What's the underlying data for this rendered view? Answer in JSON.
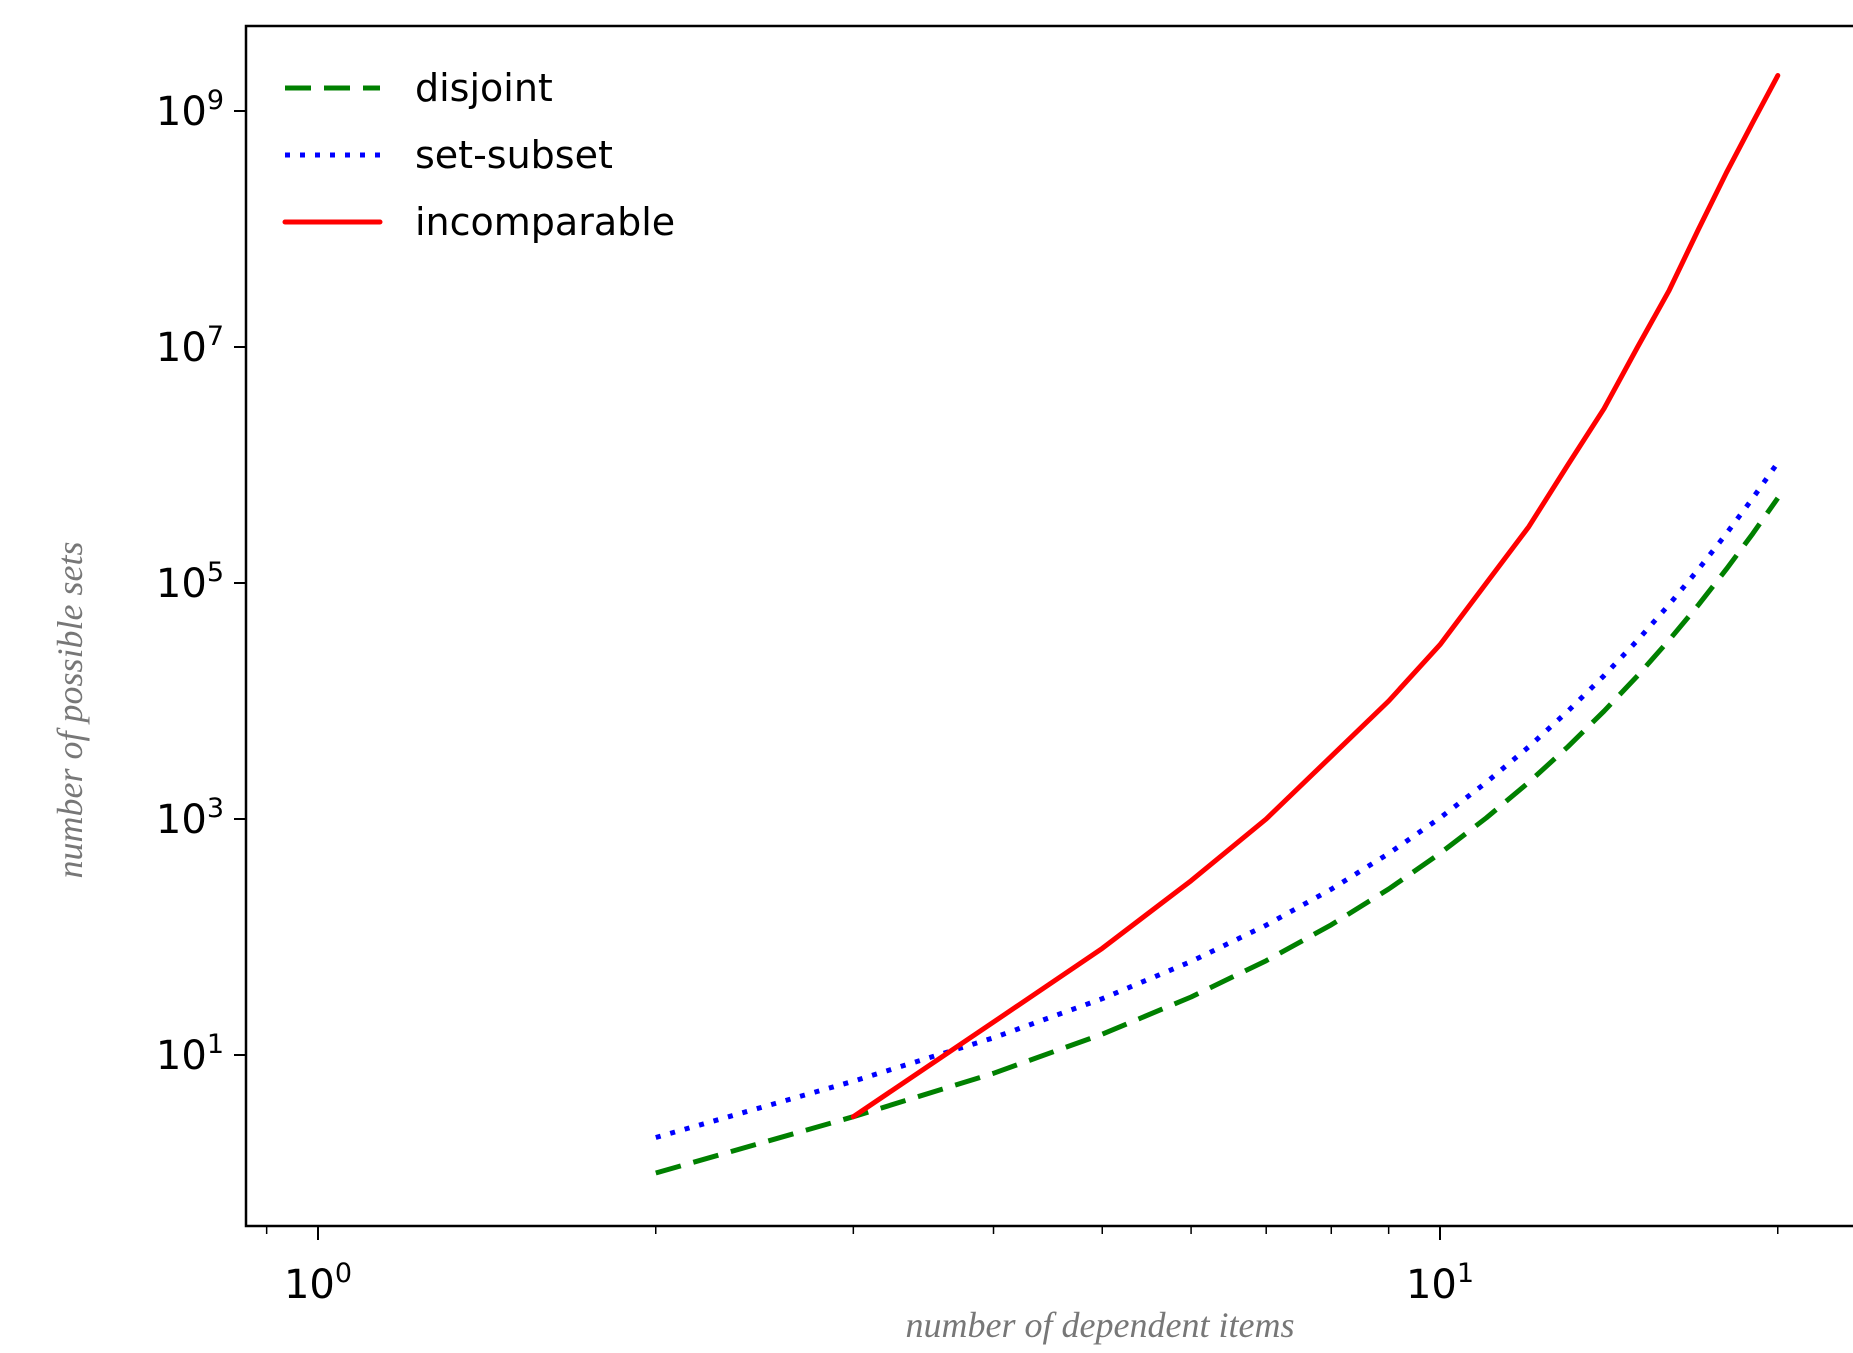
{
  "chart_data": {
    "type": "line",
    "xscale": "log",
    "yscale": "log",
    "xlabel": "number of dependent items",
    "ylabel": "number of possible sets",
    "xlim": [
      0.85,
      22
    ],
    "ylim": [
      0.3,
      5000000000
    ],
    "grid": false,
    "legend_position": "top-left",
    "x_ticks": [
      {
        "base": "10",
        "exp": "0",
        "value": 1
      },
      {
        "base": "10",
        "exp": "1",
        "value": 10
      }
    ],
    "y_ticks": [
      {
        "base": "10",
        "exp": "1",
        "value": 10
      },
      {
        "base": "10",
        "exp": "3",
        "value": 1000
      },
      {
        "base": "10",
        "exp": "5",
        "value": 100000
      },
      {
        "base": "10",
        "exp": "7",
        "value": 10000000
      },
      {
        "base": "10",
        "exp": "9",
        "value": 1000000000
      }
    ],
    "x_minor_ticks": [
      0.9,
      2,
      3,
      4,
      5,
      6,
      7,
      8,
      9,
      20
    ],
    "series": [
      {
        "name": "disjoint",
        "color": "#008000",
        "dash": "dashed",
        "x": [
          2,
          3,
          4,
          5,
          6,
          7,
          8,
          9,
          10,
          11,
          12,
          13,
          14,
          15,
          16,
          17,
          18,
          19,
          20
        ],
        "y": [
          1,
          3,
          7,
          15,
          31,
          63,
          127,
          255,
          511,
          1023,
          2047,
          4095,
          8191,
          16383,
          32767,
          65535,
          131071,
          262143,
          524287
        ]
      },
      {
        "name": "set-subset",
        "color": "#0000ff",
        "dash": "dotted",
        "x": [
          2,
          3,
          4,
          5,
          6,
          7,
          8,
          9,
          10,
          11,
          12,
          13,
          14,
          15,
          16,
          17,
          18,
          19,
          20
        ],
        "y": [
          2,
          6,
          14,
          30,
          62,
          126,
          254,
          510,
          1022,
          2046,
          4094,
          8190,
          16382,
          32766,
          65534,
          131070,
          262142,
          524286,
          1048574
        ]
      },
      {
        "name": "incomparable",
        "color": "#ff0000",
        "dash": "solid",
        "x": [
          3,
          4,
          5,
          6,
          7,
          8,
          9,
          10,
          11,
          12,
          13,
          14,
          15,
          16,
          17,
          18,
          19,
          20
        ],
        "y": [
          3,
          19,
          80,
          300,
          1000,
          3400,
          10000,
          30000,
          100000,
          300000,
          1000000,
          3000000,
          10000000,
          30000000,
          100000000,
          300000000,
          800000000,
          2000000000
        ]
      }
    ]
  }
}
